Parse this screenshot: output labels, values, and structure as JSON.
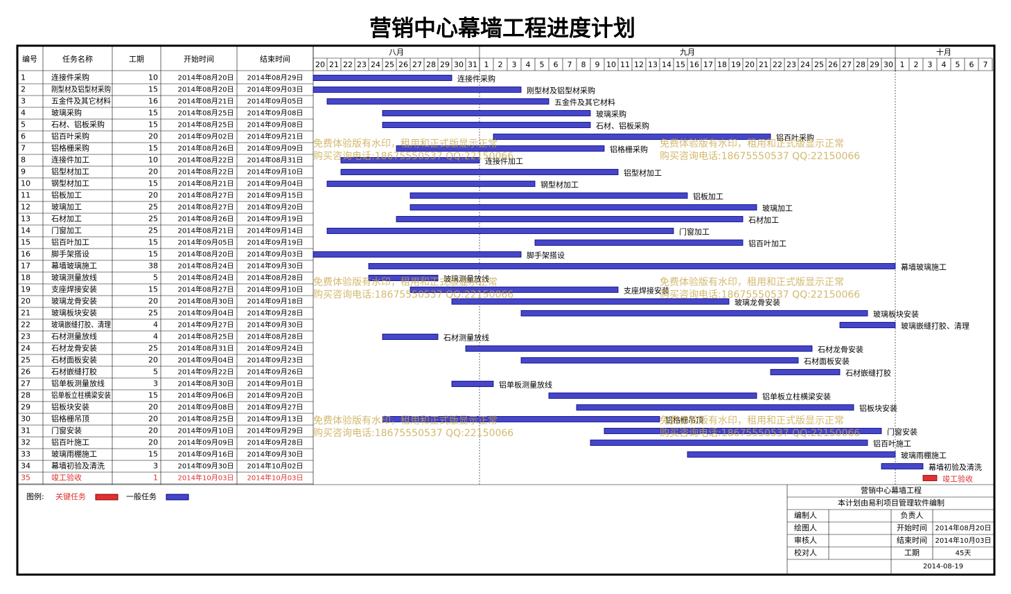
{
  "chart_data": {
    "type": "gantt",
    "title": "营销中心幕墙工程进度计划",
    "columns": [
      "编号",
      "任务名称",
      "工期",
      "开始时间",
      "结束时间"
    ],
    "months": [
      {
        "name": "八月",
        "days": [
          20,
          21,
          22,
          23,
          24,
          25,
          26,
          27,
          28,
          29,
          30,
          31
        ]
      },
      {
        "name": "九月",
        "days": [
          1,
          2,
          3,
          4,
          5,
          6,
          7,
          8,
          9,
          10,
          11,
          12,
          13,
          14,
          15,
          16,
          17,
          18,
          19,
          20,
          21,
          22,
          23,
          24,
          25,
          26,
          27,
          28,
          29,
          30
        ]
      },
      {
        "name": "十月",
        "days": [
          1,
          2,
          3,
          4,
          5,
          6,
          7
        ]
      }
    ],
    "tasks": [
      {
        "id": 1,
        "name": "连接件采购",
        "duration": 10,
        "start": "2014年08月20日",
        "end": "2014年08月29日"
      },
      {
        "id": 2,
        "name": "刚型材及铝型材采购",
        "duration": 15,
        "start": "2014年08月20日",
        "end": "2014年09月03日"
      },
      {
        "id": 3,
        "name": "五金件及其它材料",
        "duration": 16,
        "start": "2014年08月21日",
        "end": "2014年09月05日"
      },
      {
        "id": 4,
        "name": "玻璃采购",
        "duration": 15,
        "start": "2014年08月25日",
        "end": "2014年09月08日"
      },
      {
        "id": 5,
        "name": "石材、铝板采购",
        "duration": 15,
        "start": "2014年08月25日",
        "end": "2014年09月08日"
      },
      {
        "id": 6,
        "name": "铝百叶采购",
        "duration": 20,
        "start": "2014年09月02日",
        "end": "2014年09月21日"
      },
      {
        "id": 7,
        "name": "铝格栅采购",
        "duration": 15,
        "start": "2014年08月26日",
        "end": "2014年09月09日"
      },
      {
        "id": 8,
        "name": "连接件加工",
        "duration": 10,
        "start": "2014年08月22日",
        "end": "2014年08月31日"
      },
      {
        "id": 9,
        "name": "铝型材加工",
        "duration": 20,
        "start": "2014年08月22日",
        "end": "2014年09月10日"
      },
      {
        "id": 10,
        "name": "钢型材加工",
        "duration": 15,
        "start": "2014年08月21日",
        "end": "2014年09月04日"
      },
      {
        "id": 11,
        "name": "铝板加工",
        "duration": 20,
        "start": "2014年08月27日",
        "end": "2014年09月15日"
      },
      {
        "id": 12,
        "name": "玻璃加工",
        "duration": 25,
        "start": "2014年08月27日",
        "end": "2014年09月20日"
      },
      {
        "id": 13,
        "name": "石材加工",
        "duration": 25,
        "start": "2014年08月26日",
        "end": "2014年09月19日"
      },
      {
        "id": 14,
        "name": "门窗加工",
        "duration": 25,
        "start": "2014年08月21日",
        "end": "2014年09月14日"
      },
      {
        "id": 15,
        "name": "铝百叶加工",
        "duration": 15,
        "start": "2014年09月05日",
        "end": "2014年09月19日"
      },
      {
        "id": 16,
        "name": "脚手架搭设",
        "duration": 15,
        "start": "2014年08月20日",
        "end": "2014年09月03日"
      },
      {
        "id": 17,
        "name": "幕墙玻璃施工",
        "duration": 38,
        "start": "2014年08月24日",
        "end": "2014年09月30日"
      },
      {
        "id": 18,
        "name": "玻璃测量放线",
        "duration": 5,
        "start": "2014年08月24日",
        "end": "2014年08月28日"
      },
      {
        "id": 19,
        "name": "支座焊接安装",
        "duration": 15,
        "start": "2014年08月27日",
        "end": "2014年09月10日"
      },
      {
        "id": 20,
        "name": "玻璃龙骨安装",
        "duration": 20,
        "start": "2014年08月30日",
        "end": "2014年09月18日"
      },
      {
        "id": 21,
        "name": "玻璃板块安装",
        "duration": 25,
        "start": "2014年09月04日",
        "end": "2014年09月28日"
      },
      {
        "id": 22,
        "name": "玻璃嵌缝打胶、清理",
        "duration": 4,
        "start": "2014年09月27日",
        "end": "2014年09月30日"
      },
      {
        "id": 23,
        "name": "石材测量放线",
        "duration": 4,
        "start": "2014年08月25日",
        "end": "2014年08月28日"
      },
      {
        "id": 24,
        "name": "石材龙骨安装",
        "duration": 25,
        "start": "2014年08月31日",
        "end": "2014年09月24日"
      },
      {
        "id": 25,
        "name": "石材面板安装",
        "duration": 20,
        "start": "2014年09月04日",
        "end": "2014年09月23日"
      },
      {
        "id": 26,
        "name": "石材嵌缝打胶",
        "duration": 5,
        "start": "2014年09月22日",
        "end": "2014年09月26日"
      },
      {
        "id": 27,
        "name": "铝单板测量放线",
        "duration": 3,
        "start": "2014年08月30日",
        "end": "2014年09月01日"
      },
      {
        "id": 28,
        "name": "铝单板立柱横梁安装",
        "duration": 15,
        "start": "2014年09月06日",
        "end": "2014年09月20日"
      },
      {
        "id": 29,
        "name": "铝板块安装",
        "duration": 20,
        "start": "2014年09月08日",
        "end": "2014年09月27日"
      },
      {
        "id": 30,
        "name": "铝格栅吊顶",
        "duration": 20,
        "start": "2014年08月25日",
        "end": "2014年09月13日"
      },
      {
        "id": 31,
        "name": "门窗安装",
        "duration": 20,
        "start": "2014年09月10日",
        "end": "2014年09月29日"
      },
      {
        "id": 32,
        "name": "铝百叶施工",
        "duration": 20,
        "start": "2014年09月09日",
        "end": "2014年09月28日"
      },
      {
        "id": 33,
        "name": "玻璃雨棚施工",
        "duration": 15,
        "start": "2014年09月16日",
        "end": "2014年09月30日"
      },
      {
        "id": 34,
        "name": "幕墙初验及清洗",
        "duration": 3,
        "start": "2014年09月30日",
        "end": "2014年10月02日"
      },
      {
        "id": 35,
        "name": "竣工验收",
        "duration": 1,
        "start": "2014年10月03日",
        "end": "2014年10月03日",
        "critical": true
      }
    ],
    "normal_color": "#4646c8",
    "critical_color": "#e03030",
    "legend": {
      "title": "图例:",
      "critical": "关键任务",
      "normal": "一般任务"
    },
    "watermark": [
      "免费体验版有水印，租用和正式版显示正常",
      "购买咨询电话:18675550537 QQ:22150066"
    ],
    "info": {
      "project": "营销中心幕墙工程",
      "software": "本计划由易利项目管理软件编制",
      "roles": [
        "编制人",
        "绘图人",
        "审核人",
        "校对人"
      ],
      "fields": [
        {
          "label": "负责人"
        },
        {
          "label": "开始时间",
          "value": "2014年08月20日"
        },
        {
          "label": "结束时间",
          "value": "2014年10月03日"
        },
        {
          "label": "工期",
          "value": "45天"
        }
      ],
      "date": "2014-08-19"
    }
  }
}
